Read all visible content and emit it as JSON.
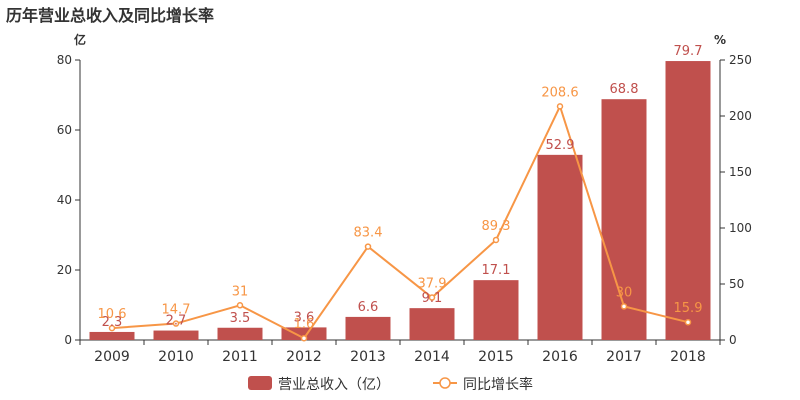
{
  "title": "历年营业总收入及同比增长率",
  "chart_data": {
    "type": "bar",
    "title": "历年营业总收入及同比增长率",
    "categories": [
      "2009",
      "2010",
      "2011",
      "2012",
      "2013",
      "2014",
      "2015",
      "2016",
      "2017",
      "2018"
    ],
    "y_left_unit": "亿",
    "y_right_unit": "%",
    "ylim_left": [
      0,
      80
    ],
    "ylim_right": [
      0,
      250
    ],
    "left_ticks": [
      "0",
      "20",
      "40",
      "60",
      "80"
    ],
    "right_ticks": [
      "0",
      "50",
      "100",
      "150",
      "200",
      "250"
    ],
    "grid": false,
    "legend_position": "bottom",
    "series": [
      {
        "name": "营业总收入（亿）",
        "type": "bar",
        "axis": "left",
        "color": "#c0504d",
        "values": [
          2.3,
          2.7,
          3.5,
          3.6,
          6.6,
          9.1,
          17.1,
          52.9,
          68.8,
          79.7
        ],
        "labels": [
          "2.3",
          "2.7",
          "3.5",
          "3.6",
          "6.6",
          "9.1",
          "17.1",
          "52.9",
          "68.8",
          "79.7"
        ]
      },
      {
        "name": "同比增长率",
        "type": "line",
        "axis": "right",
        "color": "#f79646",
        "values": [
          10.6,
          14.7,
          31,
          1.6,
          83.4,
          37.9,
          89.3,
          208.6,
          30,
          15.9
        ],
        "labels": [
          "10.6",
          "14.7",
          "31",
          "1.6",
          "83.4",
          "37.9",
          "89.3",
          "208.6",
          "30",
          "15.9"
        ]
      }
    ]
  }
}
